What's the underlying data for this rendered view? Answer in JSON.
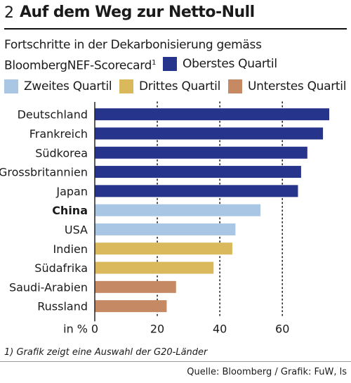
{
  "figure_number": "2",
  "colors": {
    "oberstes": "#27348b",
    "zweites": "#a9c6e4",
    "drittes": "#d9b95b",
    "unterstes": "#c58a64"
  },
  "chart_data": {
    "type": "bar",
    "orientation": "horizontal",
    "title": "Auf dem Weg zur Netto-Null",
    "subtitle_line1": "Fortschritte in der Dekarbonisierung gemäss",
    "subtitle_line2": "BloombergNEF-Scorecard",
    "subtitle_sup": "1",
    "xlabel": "in %",
    "xlim": [
      0,
      75
    ],
    "xticks": [
      0,
      20,
      40,
      60
    ],
    "grid": "vertical dotted lines at 20, 40, 60",
    "legend": [
      {
        "key": "oberstes",
        "label": "Oberstes Quartil"
      },
      {
        "key": "zweites",
        "label": "Zweites Quartil"
      },
      {
        "key": "drittes",
        "label": "Drittes Quartil"
      },
      {
        "key": "unterstes",
        "label": "Unterstes Quartil"
      }
    ],
    "categories": [
      "Deutschland",
      "Frankreich",
      "Südkorea",
      "Grossbritannien",
      "Japan",
      "China",
      "USA",
      "Indien",
      "Südafrika",
      "Saudi-Arabien",
      "Russland"
    ],
    "values": [
      75,
      73,
      68,
      66,
      65,
      53,
      45,
      44,
      38,
      26,
      23
    ],
    "quartiles": [
      "oberstes",
      "oberstes",
      "oberstes",
      "oberstes",
      "oberstes",
      "zweites",
      "zweites",
      "drittes",
      "drittes",
      "unterstes",
      "unterstes"
    ],
    "highlight": "China"
  },
  "footnote": "1) Grafik zeigt eine Auswahl der G20-Länder",
  "source": "Quelle: Bloomberg / Grafik: FuW, ls"
}
